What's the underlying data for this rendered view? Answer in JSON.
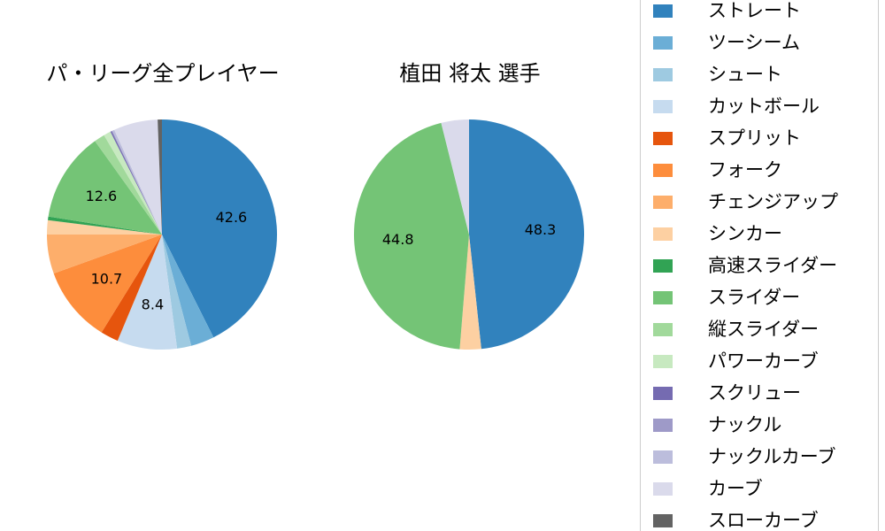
{
  "chart_data": [
    {
      "type": "pie",
      "title": "パ・リーグ全プレイヤー",
      "start_angle": "top",
      "direction": "clockwise",
      "slices": [
        {
          "label": "ストレート",
          "value": 42.6,
          "color": "#3182bd",
          "show_label": true
        },
        {
          "label": "ツーシーム",
          "value": 3.3,
          "color": "#6baed6",
          "show_label": false
        },
        {
          "label": "シュート",
          "value": 2.0,
          "color": "#9ecae1",
          "show_label": false
        },
        {
          "label": "カットボール",
          "value": 8.4,
          "color": "#c6dbef",
          "show_label": true
        },
        {
          "label": "スプリット",
          "value": 2.5,
          "color": "#e6550d",
          "show_label": false
        },
        {
          "label": "フォーク",
          "value": 10.7,
          "color": "#fd8d3c",
          "show_label": true
        },
        {
          "label": "チェンジアップ",
          "value": 5.5,
          "color": "#fdae6b",
          "show_label": false
        },
        {
          "label": "シンカー",
          "value": 2.0,
          "color": "#fdd0a2",
          "show_label": false
        },
        {
          "label": "高速スライダー",
          "value": 0.5,
          "color": "#31a354",
          "show_label": false
        },
        {
          "label": "スライダー",
          "value": 12.6,
          "color": "#74c476",
          "show_label": true
        },
        {
          "label": "縦スライダー",
          "value": 1.5,
          "color": "#a1d99b",
          "show_label": false
        },
        {
          "label": "パワーカーブ",
          "value": 1.0,
          "color": "#c7e9c0",
          "show_label": false
        },
        {
          "label": "スクリュー",
          "value": 0.2,
          "color": "#756bb1",
          "show_label": false
        },
        {
          "label": "ナックル",
          "value": 0.1,
          "color": "#9e9ac8",
          "show_label": false
        },
        {
          "label": "ナックルカーブ",
          "value": 0.3,
          "color": "#bcbddc",
          "show_label": false
        },
        {
          "label": "カーブ",
          "value": 6.2,
          "color": "#dadaeb",
          "show_label": false
        },
        {
          "label": "スローカーブ",
          "value": 0.6,
          "color": "#636363",
          "show_label": false
        }
      ]
    },
    {
      "type": "pie",
      "title": "植田 将太 選手",
      "start_angle": "top",
      "direction": "clockwise",
      "slices": [
        {
          "label": "ストレート",
          "value": 48.3,
          "color": "#3182bd",
          "show_label": true
        },
        {
          "label": "シンカー",
          "value": 3.0,
          "color": "#fdd0a2",
          "show_label": false
        },
        {
          "label": "スライダー",
          "value": 44.8,
          "color": "#74c476",
          "show_label": true
        },
        {
          "label": "カーブ",
          "value": 3.9,
          "color": "#dadaeb",
          "show_label": false
        }
      ]
    }
  ],
  "legend": {
    "position": "right",
    "items": [
      {
        "label": "ストレート",
        "color": "#3182bd"
      },
      {
        "label": "ツーシーム",
        "color": "#6baed6"
      },
      {
        "label": "シュート",
        "color": "#9ecae1"
      },
      {
        "label": "カットボール",
        "color": "#c6dbef"
      },
      {
        "label": "スプリット",
        "color": "#e6550d"
      },
      {
        "label": "フォーク",
        "color": "#fd8d3c"
      },
      {
        "label": "チェンジアップ",
        "color": "#fdae6b"
      },
      {
        "label": "シンカー",
        "color": "#fdd0a2"
      },
      {
        "label": "高速スライダー",
        "color": "#31a354"
      },
      {
        "label": "スライダー",
        "color": "#74c476"
      },
      {
        "label": "縦スライダー",
        "color": "#a1d99b"
      },
      {
        "label": "パワーカーブ",
        "color": "#c7e9c0"
      },
      {
        "label": "スクリュー",
        "color": "#756bb1"
      },
      {
        "label": "ナックル",
        "color": "#9e9ac8"
      },
      {
        "label": "ナックルカーブ",
        "color": "#bcbddc"
      },
      {
        "label": "カーブ",
        "color": "#dadaeb"
      },
      {
        "label": "スローカーブ",
        "color": "#636363"
      }
    ]
  }
}
